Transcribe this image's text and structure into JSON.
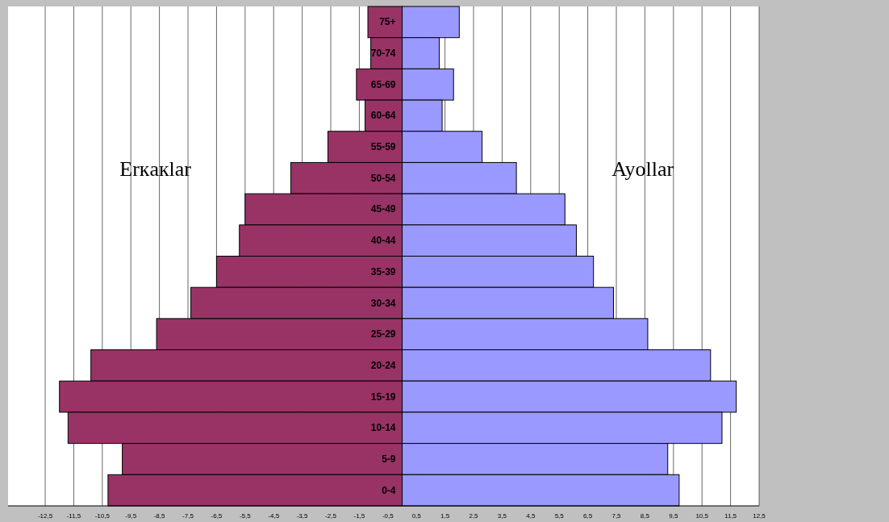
{
  "chart_data": {
    "type": "bar",
    "orientation": "horizontal",
    "stacked": true,
    "categories": [
      "75+",
      "70-74",
      "65-69",
      "60-64",
      "55-59",
      "50-54",
      "45-49",
      "40-44",
      "35-39",
      "30-34",
      "25-29",
      "20-24",
      "15-19",
      "10-14",
      "5-9",
      "0-4"
    ],
    "series": [
      {
        "name": "Erкaкlar",
        "color": "#993366",
        "values": [
          -1.2,
          -1.1,
          -1.6,
          -1.3,
          -2.6,
          -3.9,
          -5.5,
          -5.7,
          -6.5,
          -7.4,
          -8.6,
          -10.9,
          -12.0,
          -11.7,
          -9.8,
          -10.3
        ]
      },
      {
        "name": "Ayollar",
        "color": "#9999ff",
        "values": [
          2.0,
          1.3,
          1.8,
          1.4,
          2.8,
          4.0,
          5.7,
          6.1,
          6.7,
          7.4,
          8.6,
          10.8,
          11.7,
          11.2,
          9.3,
          9.7
        ]
      }
    ],
    "xlim": [
      -13.8,
      12.5
    ],
    "xticks": [
      {
        "value": -12.5,
        "label": "-12,5"
      },
      {
        "value": -11.5,
        "label": "-11,5"
      },
      {
        "value": -10.5,
        "label": "-10,5"
      },
      {
        "value": -9.5,
        "label": "-9,5"
      },
      {
        "value": -8.5,
        "label": "-8,5"
      },
      {
        "value": -7.5,
        "label": "-7,5"
      },
      {
        "value": -6.5,
        "label": "-6,5"
      },
      {
        "value": -5.5,
        "label": "-5,5"
      },
      {
        "value": -4.5,
        "label": "-4,5"
      },
      {
        "value": -3.5,
        "label": "-3,5"
      },
      {
        "value": -2.5,
        "label": "-2,5"
      },
      {
        "value": -1.5,
        "label": "-1,5"
      },
      {
        "value": -0.5,
        "label": "-0,5"
      },
      {
        "value": 0.5,
        "label": "0,5"
      },
      {
        "value": 1.5,
        "label": "1,5"
      },
      {
        "value": 2.5,
        "label": "2,5"
      },
      {
        "value": 3.5,
        "label": "3,5"
      },
      {
        "value": 4.5,
        "label": "4,5"
      },
      {
        "value": 5.5,
        "label": "5,5"
      },
      {
        "value": 6.5,
        "label": "6,5"
      },
      {
        "value": 7.5,
        "label": "7,5"
      },
      {
        "value": 8.5,
        "label": "8,5"
      },
      {
        "value": 9.5,
        "label": "9,5"
      },
      {
        "value": 10.5,
        "label": "10,5"
      },
      {
        "value": 11.5,
        "label": "11,5"
      },
      {
        "value": 12.5,
        "label": "12,5"
      }
    ],
    "grid": "x"
  }
}
